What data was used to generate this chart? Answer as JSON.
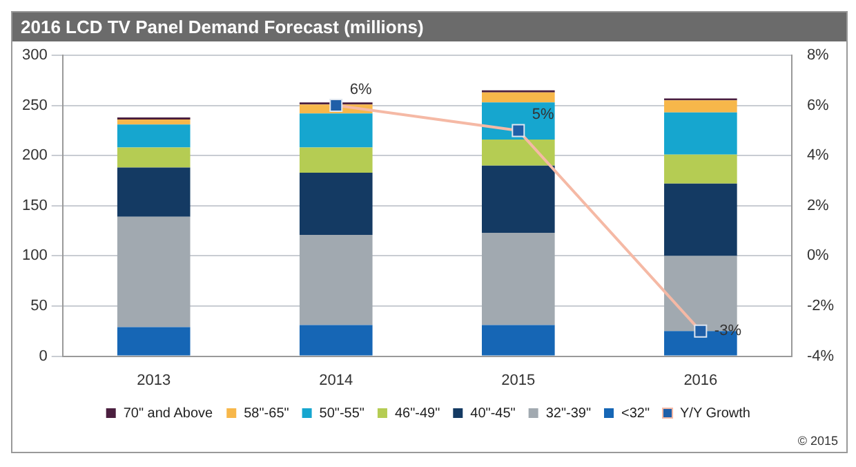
{
  "chart_data": {
    "type": "bar",
    "title": "2016 LCD TV Panel Demand Forecast (millions)",
    "categories": [
      "2013",
      "2014",
      "2015",
      "2016"
    ],
    "stacked": true,
    "series": [
      {
        "name": "<32\"",
        "color": "#1666b5",
        "values": [
          29,
          31,
          31,
          25
        ]
      },
      {
        "name": "32\"-39\"",
        "color": "#a1a9b0",
        "values": [
          110,
          90,
          92,
          75
        ]
      },
      {
        "name": "40\"-45\"",
        "color": "#143a63",
        "values": [
          49,
          62,
          67,
          72
        ]
      },
      {
        "name": "46\"-49\"",
        "color": "#b5cc53",
        "values": [
          20,
          25,
          26,
          29
        ]
      },
      {
        "name": "50\"-55\"",
        "color": "#16a6cf",
        "values": [
          23,
          34,
          37,
          42
        ]
      },
      {
        "name": "58\"-65\"",
        "color": "#f7b74a",
        "values": [
          5,
          9,
          10,
          12
        ]
      },
      {
        "name": "70\" and Above",
        "color": "#4b1f3f",
        "values": [
          2,
          2,
          2,
          2
        ]
      },
      {
        "name": "Y/Y Growth",
        "type": "line",
        "axis": "y2",
        "color": "#f5b9a5",
        "marker": "square",
        "values": [
          null,
          6,
          5,
          -3
        ],
        "value_labels": [
          null,
          "6%",
          "5%",
          "-3%"
        ]
      }
    ],
    "ylim": [
      0,
      300
    ],
    "yticks": [
      0,
      50,
      100,
      150,
      200,
      250,
      300
    ],
    "y2lim": [
      -4,
      8
    ],
    "y2ticks": [
      {
        "value": -4,
        "label": "-4%"
      },
      {
        "value": -2,
        "label": "-2%"
      },
      {
        "value": 0,
        "label": "0%"
      },
      {
        "value": 2,
        "label": "2%"
      },
      {
        "value": 4,
        "label": "4%"
      },
      {
        "value": 6,
        "label": "6%"
      },
      {
        "value": 8,
        "label": "8%"
      }
    ],
    "grid": "y",
    "legend": "bottom",
    "annotations": [
      "© 2015"
    ]
  }
}
